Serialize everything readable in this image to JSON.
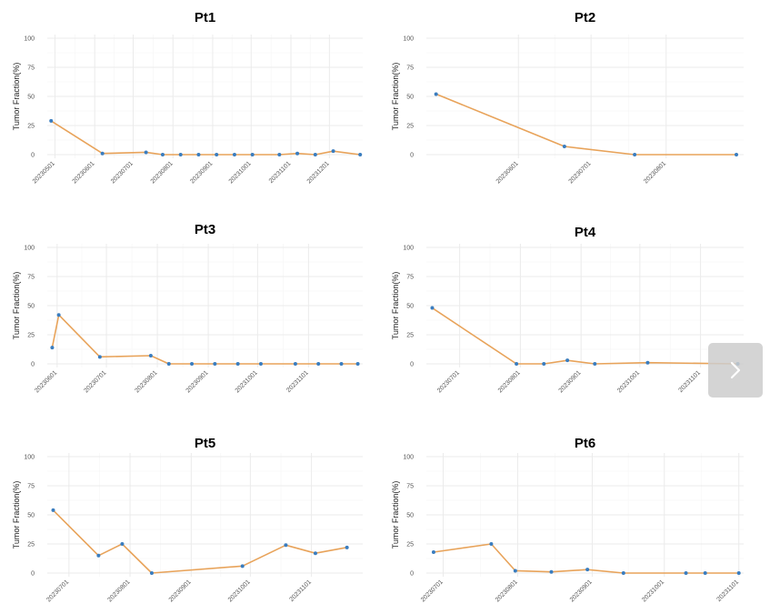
{
  "ylabel": "Tumor Fraction(%)",
  "colors": {
    "line": "#E8A35A",
    "point": "#3A7DBF"
  },
  "next_button_icon": "chevron-right-icon",
  "chart_data": [
    {
      "type": "line",
      "title": "Pt1",
      "ylabel": "Tumor Fraction(%)",
      "ylim": [
        0,
        100
      ],
      "yticks": [
        "0",
        "25",
        "50",
        "75",
        "100"
      ],
      "xlim": [
        "2023-04-25",
        "2023-12-27"
      ],
      "xticks": [
        {
          "label": "20230501",
          "date": "2023-05-01"
        },
        {
          "label": "20230601",
          "date": "2023-06-01"
        },
        {
          "label": "20230701",
          "date": "2023-07-01"
        },
        {
          "label": "20230801",
          "date": "2023-08-01"
        },
        {
          "label": "20230901",
          "date": "2023-09-01"
        },
        {
          "label": "20231001",
          "date": "2023-10-01"
        },
        {
          "label": "20231101",
          "date": "2023-11-01"
        },
        {
          "label": "20231201",
          "date": "2023-12-01"
        }
      ],
      "grid": true,
      "points": [
        {
          "x": "2023-04-28",
          "y": 29
        },
        {
          "x": "2023-06-07",
          "y": 1
        },
        {
          "x": "2023-07-11",
          "y": 2
        },
        {
          "x": "2023-07-24",
          "y": 0
        },
        {
          "x": "2023-08-07",
          "y": 0
        },
        {
          "x": "2023-08-21",
          "y": 0
        },
        {
          "x": "2023-09-04",
          "y": 0
        },
        {
          "x": "2023-09-18",
          "y": 0
        },
        {
          "x": "2023-10-02",
          "y": 0
        },
        {
          "x": "2023-10-23",
          "y": 0
        },
        {
          "x": "2023-11-06",
          "y": 1
        },
        {
          "x": "2023-11-20",
          "y": 0
        },
        {
          "x": "2023-12-04",
          "y": 3
        },
        {
          "x": "2023-12-25",
          "y": 0
        }
      ]
    },
    {
      "type": "line",
      "title": "Pt2",
      "ylabel": "Tumor Fraction(%)",
      "ylim": [
        0,
        100
      ],
      "yticks": [
        "0",
        "25",
        "50",
        "75",
        "100"
      ],
      "xlim": [
        "2023-04-24",
        "2023-09-02"
      ],
      "xticks": [
        {
          "label": "20230601",
          "date": "2023-06-01"
        },
        {
          "label": "20230701",
          "date": "2023-07-01"
        },
        {
          "label": "20230801",
          "date": "2023-08-01"
        }
      ],
      "grid": true,
      "points": [
        {
          "x": "2023-04-28",
          "y": 52
        },
        {
          "x": "2023-06-20",
          "y": 7
        },
        {
          "x": "2023-07-19",
          "y": 0
        },
        {
          "x": "2023-08-30",
          "y": 0
        }
      ]
    },
    {
      "type": "line",
      "title": "Pt3",
      "ylabel": "Tumor Fraction(%)",
      "ylim": [
        0,
        100
      ],
      "yticks": [
        "0",
        "25",
        "50",
        "75",
        "100"
      ],
      "xlim": [
        "2023-05-26",
        "2023-12-04"
      ],
      "xticks": [
        {
          "label": "20230601",
          "date": "2023-06-01"
        },
        {
          "label": "20230701",
          "date": "2023-07-01"
        },
        {
          "label": "20230801",
          "date": "2023-08-01"
        },
        {
          "label": "20230901",
          "date": "2023-09-01"
        },
        {
          "label": "20231001",
          "date": "2023-10-01"
        },
        {
          "label": "20231101",
          "date": "2023-11-01"
        }
      ],
      "grid": true,
      "points": [
        {
          "x": "2023-05-29",
          "y": 14
        },
        {
          "x": "2023-06-02",
          "y": 42
        },
        {
          "x": "2023-06-27",
          "y": 6
        },
        {
          "x": "2023-07-28",
          "y": 7
        },
        {
          "x": "2023-08-08",
          "y": 0
        },
        {
          "x": "2023-08-22",
          "y": 0
        },
        {
          "x": "2023-09-05",
          "y": 0
        },
        {
          "x": "2023-09-19",
          "y": 0
        },
        {
          "x": "2023-10-03",
          "y": 0
        },
        {
          "x": "2023-10-24",
          "y": 0
        },
        {
          "x": "2023-11-07",
          "y": 0
        },
        {
          "x": "2023-11-21",
          "y": 0
        },
        {
          "x": "2023-12-01",
          "y": 0
        }
      ]
    },
    {
      "type": "line",
      "title": "Pt4",
      "ylabel": "Tumor Fraction(%)",
      "ylim": [
        0,
        100
      ],
      "yticks": [
        "0",
        "25",
        "50",
        "75",
        "100"
      ],
      "xlim": [
        "2023-06-14",
        "2023-11-23"
      ],
      "xticks": [
        {
          "label": "20230701",
          "date": "2023-07-01"
        },
        {
          "label": "20230801",
          "date": "2023-08-01"
        },
        {
          "label": "20230901",
          "date": "2023-09-01"
        },
        {
          "label": "20231001",
          "date": "2023-10-01"
        },
        {
          "label": "20231101",
          "date": "2023-11-01"
        }
      ],
      "grid": true,
      "points": [
        {
          "x": "2023-06-17",
          "y": 48
        },
        {
          "x": "2023-07-30",
          "y": 0
        },
        {
          "x": "2023-08-13",
          "y": 0
        },
        {
          "x": "2023-08-25",
          "y": 3
        },
        {
          "x": "2023-09-08",
          "y": 0
        },
        {
          "x": "2023-10-05",
          "y": 1
        },
        {
          "x": "2023-11-20",
          "y": 0
        }
      ]
    },
    {
      "type": "line",
      "title": "Pt5",
      "ylabel": "Tumor Fraction(%)",
      "ylim": [
        0,
        100
      ],
      "yticks": [
        "0",
        "25",
        "50",
        "75",
        "100"
      ],
      "xlim": [
        "2023-06-20",
        "2023-11-27"
      ],
      "xticks": [
        {
          "label": "20230701",
          "date": "2023-07-01"
        },
        {
          "label": "20230801",
          "date": "2023-08-01"
        },
        {
          "label": "20230901",
          "date": "2023-09-01"
        },
        {
          "label": "20231001",
          "date": "2023-10-01"
        },
        {
          "label": "20231101",
          "date": "2023-11-01"
        }
      ],
      "grid": true,
      "points": [
        {
          "x": "2023-06-23",
          "y": 54
        },
        {
          "x": "2023-07-16",
          "y": 15
        },
        {
          "x": "2023-07-28",
          "y": 25
        },
        {
          "x": "2023-08-12",
          "y": 0
        },
        {
          "x": "2023-09-27",
          "y": 6
        },
        {
          "x": "2023-10-19",
          "y": 24
        },
        {
          "x": "2023-11-03",
          "y": 17
        },
        {
          "x": "2023-11-19",
          "y": 22
        }
      ]
    },
    {
      "type": "line",
      "title": "Pt6",
      "ylabel": "Tumor Fraction(%)",
      "ylim": [
        0,
        100
      ],
      "yticks": [
        "0",
        "25",
        "50",
        "75",
        "100"
      ],
      "xlim": [
        "2023-06-24",
        "2023-11-03"
      ],
      "xticks": [
        {
          "label": "20230701",
          "date": "2023-07-01"
        },
        {
          "label": "20230801",
          "date": "2023-08-01"
        },
        {
          "label": "20230901",
          "date": "2023-09-01"
        },
        {
          "label": "20231001",
          "date": "2023-10-01"
        },
        {
          "label": "20231101",
          "date": "2023-11-01"
        }
      ],
      "grid": true,
      "points": [
        {
          "x": "2023-06-27",
          "y": 18
        },
        {
          "x": "2023-07-21",
          "y": 25
        },
        {
          "x": "2023-07-31",
          "y": 2
        },
        {
          "x": "2023-08-15",
          "y": 1
        },
        {
          "x": "2023-08-30",
          "y": 3
        },
        {
          "x": "2023-09-14",
          "y": 0
        },
        {
          "x": "2023-10-10",
          "y": 0
        },
        {
          "x": "2023-10-18",
          "y": 0
        },
        {
          "x": "2023-11-01",
          "y": 0
        }
      ]
    }
  ]
}
